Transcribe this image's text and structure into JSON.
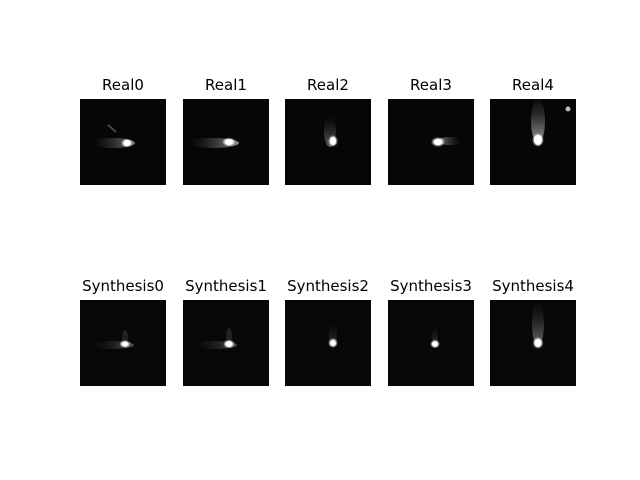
{
  "real_row": [
    {
      "title": "Real0"
    },
    {
      "title": "Real1"
    },
    {
      "title": "Real2"
    },
    {
      "title": "Real3"
    },
    {
      "title": "Real4"
    }
  ],
  "synthesis_row": [
    {
      "title": "Synthesis0"
    },
    {
      "title": "Synthesis1"
    },
    {
      "title": "Synthesis2"
    },
    {
      "title": "Synthesis3"
    },
    {
      "title": "Synthesis4"
    }
  ]
}
